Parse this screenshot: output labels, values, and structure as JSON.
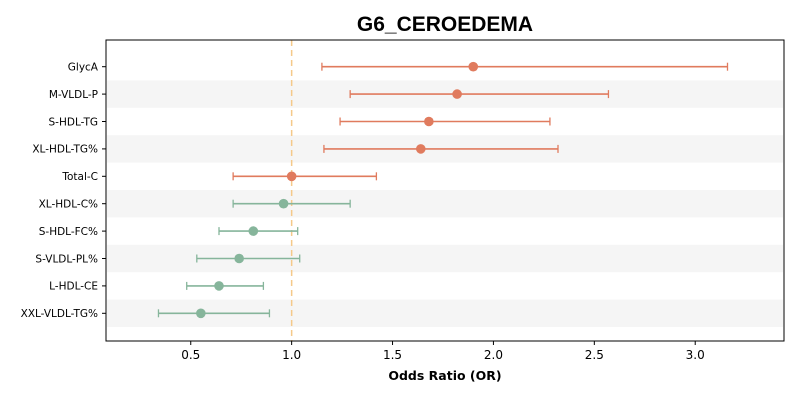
{
  "chart_data": {
    "type": "forest",
    "title": "G6_CEROEDEMA",
    "xlabel": "Odds Ratio (OR)",
    "xlim": [
      0.08,
      3.44
    ],
    "xticks": [
      0.5,
      1.0,
      1.5,
      2.0,
      2.5,
      3.0
    ],
    "xtick_labels": [
      "0.5",
      "1.0",
      "1.5",
      "2.0",
      "2.5",
      "3.0"
    ],
    "reference_line": 1.0,
    "colors": {
      "positive": "#e07b5e",
      "negative": "#86b59b",
      "reference": "#f5c98a",
      "band": "#f5f5f5"
    },
    "rows": [
      {
        "label": "GlycA",
        "or": 1.9,
        "lower": 1.15,
        "upper": 3.16,
        "group": "positive"
      },
      {
        "label": "M-VLDL-P",
        "or": 1.82,
        "lower": 1.29,
        "upper": 2.57,
        "group": "positive"
      },
      {
        "label": "S-HDL-TG",
        "or": 1.68,
        "lower": 1.24,
        "upper": 2.28,
        "group": "positive"
      },
      {
        "label": "XL-HDL-TG%",
        "or": 1.64,
        "lower": 1.16,
        "upper": 2.32,
        "group": "positive"
      },
      {
        "label": "Total-C",
        "or": 1.0,
        "lower": 0.71,
        "upper": 1.42,
        "group": "positive"
      },
      {
        "label": "XL-HDL-C%",
        "or": 0.96,
        "lower": 0.71,
        "upper": 1.29,
        "group": "negative"
      },
      {
        "label": "S-HDL-FC%",
        "or": 0.81,
        "lower": 0.64,
        "upper": 1.03,
        "group": "negative"
      },
      {
        "label": "S-VLDL-PL%",
        "or": 0.74,
        "lower": 0.53,
        "upper": 1.04,
        "group": "negative"
      },
      {
        "label": "L-HDL-CE",
        "or": 0.64,
        "lower": 0.48,
        "upper": 0.86,
        "group": "negative"
      },
      {
        "label": "XXL-VLDL-TG%",
        "or": 0.55,
        "lower": 0.34,
        "upper": 0.89,
        "group": "negative"
      }
    ]
  }
}
